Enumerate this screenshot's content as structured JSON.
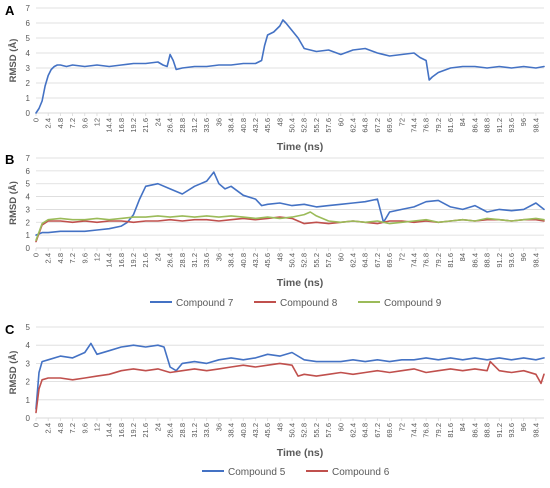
{
  "chart_data": [
    {
      "panel": "A",
      "type": "line",
      "ylabel": "RMSD (Å)",
      "xlabel": "Time (ns)",
      "ylim": [
        0,
        7
      ],
      "yticks": [
        0,
        1,
        2,
        3,
        4,
        5,
        6,
        7
      ],
      "xlim": [
        0,
        100
      ],
      "xticks": [
        "0",
        "2.4",
        "4.8",
        "7.2",
        "9.6",
        "12",
        "14.4",
        "16.8",
        "19.2",
        "21.6",
        "24",
        "26.4",
        "28.8",
        "31.2",
        "33.6",
        "36",
        "38.4",
        "40.8",
        "43.2",
        "45.6",
        "48",
        "50.4",
        "52.8",
        "55.2",
        "57.6",
        "60",
        "62.4",
        "64.8",
        "67.2",
        "69.6",
        "72",
        "74.4",
        "76.8",
        "79.2",
        "81.6",
        "84",
        "86.4",
        "88.8",
        "91.2",
        "93.6",
        "96",
        "98.4"
      ],
      "grid": true,
      "legend": "none",
      "colors": {
        "series": [
          "#4472c4"
        ]
      },
      "series": [
        {
          "name": "",
          "x": [
            0,
            0.6,
            1.2,
            1.8,
            2.4,
            3,
            3.6,
            4.2,
            4.8,
            6,
            7.2,
            9.6,
            12,
            14.4,
            16.8,
            19.2,
            21.6,
            24,
            25,
            25.8,
            26.4,
            27,
            27.6,
            28.8,
            31.2,
            33.6,
            36,
            38.4,
            40.8,
            43.2,
            44.4,
            45,
            45.6,
            46.8,
            48,
            48.6,
            49.2,
            50.4,
            51.6,
            52.8,
            55.2,
            57.6,
            60,
            62.4,
            64.8,
            67.2,
            69.6,
            72,
            74.4,
            75.6,
            76.8,
            77.4,
            78,
            79.2,
            81.6,
            84,
            86.4,
            88.8,
            91.2,
            93.6,
            96,
            98.4,
            100
          ],
          "y": [
            0,
            0.3,
            0.8,
            1.8,
            2.5,
            2.9,
            3.1,
            3.2,
            3.2,
            3.1,
            3.2,
            3.1,
            3.2,
            3.1,
            3.2,
            3.3,
            3.3,
            3.4,
            3.2,
            3.1,
            3.9,
            3.5,
            2.9,
            3.0,
            3.1,
            3.1,
            3.2,
            3.2,
            3.3,
            3.3,
            3.5,
            4.5,
            5.2,
            5.4,
            5.8,
            6.2,
            6.0,
            5.5,
            5.0,
            4.3,
            4.1,
            4.2,
            3.9,
            4.2,
            4.3,
            4.0,
            3.8,
            3.9,
            4.0,
            3.7,
            3.5,
            2.2,
            2.4,
            2.7,
            3.0,
            3.1,
            3.1,
            3.0,
            3.1,
            3.0,
            3.1,
            3.0,
            3.1
          ]
        }
      ]
    },
    {
      "panel": "B",
      "type": "line",
      "ylabel": "RMSD (Å)",
      "xlabel": "Time (ns)",
      "ylim": [
        0,
        7
      ],
      "yticks": [
        0,
        1,
        2,
        3,
        4,
        5,
        6,
        7
      ],
      "xlim": [
        0,
        100
      ],
      "xticks": [
        "0",
        "2.4",
        "4.8",
        "7.2",
        "9.6",
        "12",
        "14.4",
        "16.8",
        "19.2",
        "21.6",
        "24",
        "26.4",
        "28.8",
        "31.2",
        "33.6",
        "36",
        "38.4",
        "40.8",
        "43.2",
        "45.6",
        "48",
        "50.4",
        "52.8",
        "55.2",
        "57.6",
        "60",
        "62.4",
        "64.8",
        "67.2",
        "69.6",
        "72",
        "74.4",
        "76.8",
        "79.2",
        "81.6",
        "84",
        "86.4",
        "88.8",
        "91.2",
        "93.6",
        "96",
        "98.4"
      ],
      "grid": true,
      "legend": "bottom",
      "colors": {
        "series": [
          "#4472c4",
          "#c0504d",
          "#9bbb59"
        ]
      },
      "series": [
        {
          "name": "Compound 7",
          "x": [
            0,
            1.2,
            2.4,
            4.8,
            7.2,
            9.6,
            12,
            14.4,
            16.8,
            18,
            19.2,
            20.4,
            21.6,
            24,
            26.4,
            28.8,
            31.2,
            33.6,
            35,
            36,
            37.2,
            38.4,
            40.8,
            43.2,
            44.4,
            45.6,
            48,
            50.4,
            52.8,
            55.2,
            57.6,
            60,
            62.4,
            64.8,
            67.2,
            68.4,
            69.6,
            72,
            74.4,
            76.8,
            79.2,
            81.6,
            84,
            86.4,
            88.8,
            91.2,
            93.6,
            96,
            98.4,
            100
          ],
          "y": [
            1.0,
            1.2,
            1.2,
            1.3,
            1.3,
            1.3,
            1.4,
            1.5,
            1.7,
            2.0,
            2.6,
            3.8,
            4.8,
            5.0,
            4.6,
            4.2,
            4.8,
            5.2,
            5.9,
            5.0,
            4.6,
            4.8,
            4.1,
            3.8,
            3.3,
            3.4,
            3.5,
            3.3,
            3.4,
            3.2,
            3.3,
            3.4,
            3.5,
            3.6,
            3.8,
            2.0,
            2.8,
            3.0,
            3.2,
            3.6,
            3.7,
            3.2,
            3.0,
            3.3,
            2.8,
            3.0,
            2.9,
            3.0,
            3.5,
            3.0
          ]
        },
        {
          "name": "Compound 8",
          "x": [
            0,
            1.2,
            2.4,
            4.8,
            7.2,
            9.6,
            12,
            14.4,
            16.8,
            19.2,
            21.6,
            24,
            26.4,
            28.8,
            31.2,
            33.6,
            36,
            38.4,
            40.8,
            43.2,
            45.6,
            48,
            50.4,
            52.8,
            55.2,
            57.6,
            60,
            62.4,
            64.8,
            67.2,
            69.6,
            72,
            74.4,
            76.8,
            79.2,
            81.6,
            84,
            86.4,
            88.8,
            91.2,
            93.6,
            96,
            98.4,
            100
          ],
          "y": [
            0.5,
            1.8,
            2.1,
            2.1,
            2.0,
            2.1,
            2.0,
            2.1,
            2.1,
            2.0,
            2.1,
            2.1,
            2.2,
            2.1,
            2.2,
            2.2,
            2.1,
            2.2,
            2.3,
            2.2,
            2.3,
            2.4,
            2.3,
            1.9,
            2.0,
            1.9,
            2.0,
            2.1,
            2.0,
            1.9,
            2.1,
            2.1,
            2.0,
            2.1,
            2.0,
            2.1,
            2.2,
            2.1,
            2.2,
            2.2,
            2.1,
            2.2,
            2.2,
            2.1
          ]
        },
        {
          "name": "Compound 9",
          "x": [
            0,
            1.2,
            2.4,
            4.8,
            7.2,
            9.6,
            12,
            14.4,
            16.8,
            19.2,
            21.6,
            24,
            26.4,
            28.8,
            31.2,
            33.6,
            36,
            38.4,
            40.8,
            43.2,
            45.6,
            48,
            50.4,
            52.8,
            54,
            55.2,
            57.6,
            60,
            62.4,
            64.8,
            67.2,
            69.6,
            72,
            74.4,
            76.8,
            79.2,
            81.6,
            84,
            86.4,
            88.8,
            91.2,
            93.6,
            96,
            98.4,
            100
          ],
          "y": [
            0.6,
            1.9,
            2.2,
            2.3,
            2.2,
            2.2,
            2.3,
            2.2,
            2.3,
            2.4,
            2.4,
            2.5,
            2.4,
            2.5,
            2.4,
            2.5,
            2.4,
            2.5,
            2.4,
            2.3,
            2.4,
            2.3,
            2.4,
            2.6,
            2.8,
            2.5,
            2.1,
            2.0,
            2.1,
            2.0,
            2.1,
            1.9,
            2.0,
            2.1,
            2.2,
            2.0,
            2.1,
            2.2,
            2.1,
            2.3,
            2.2,
            2.1,
            2.2,
            2.3,
            2.2
          ]
        }
      ]
    },
    {
      "panel": "C",
      "type": "line",
      "ylabel": "RMSD (Å)",
      "xlabel": "Time (ns)",
      "ylim": [
        0,
        5
      ],
      "yticks": [
        0,
        1,
        2,
        3,
        4,
        5
      ],
      "xlim": [
        0,
        100
      ],
      "xticks": [
        "0",
        "2.4",
        "4.8",
        "7.2",
        "9.6",
        "12",
        "14.4",
        "16.8",
        "19.2",
        "21.6",
        "24",
        "26.4",
        "28.8",
        "31.2",
        "33.6",
        "36",
        "38.4",
        "40.8",
        "43.2",
        "45.6",
        "48",
        "50.4",
        "52.8",
        "55.2",
        "57.6",
        "60",
        "62.4",
        "64.8",
        "67.2",
        "69.6",
        "72",
        "74.4",
        "76.8",
        "79.2",
        "81.6",
        "84",
        "86.4",
        "88.8",
        "91.2",
        "93.6",
        "96",
        "98.4"
      ],
      "grid": true,
      "legend": "bottom",
      "colors": {
        "series": [
          "#4472c4",
          "#c0504d"
        ]
      },
      "series": [
        {
          "name": "Compound 5",
          "x": [
            0,
            0.6,
            1.2,
            2.4,
            4.8,
            7.2,
            9.6,
            10.8,
            12,
            14.4,
            16.8,
            19.2,
            21.6,
            24,
            25.2,
            26.4,
            27.6,
            28.8,
            31.2,
            33.6,
            36,
            38.4,
            40.8,
            43.2,
            45.6,
            48,
            50.4,
            52.8,
            55.2,
            57.6,
            60,
            62.4,
            64.8,
            67.2,
            69.6,
            72,
            74.4,
            76.8,
            79.2,
            81.6,
            84,
            86.4,
            88.8,
            91.2,
            93.6,
            96,
            98.4,
            100
          ],
          "y": [
            0.5,
            2.5,
            3.1,
            3.2,
            3.4,
            3.3,
            3.6,
            4.1,
            3.5,
            3.7,
            3.9,
            4.0,
            3.9,
            4.0,
            3.9,
            2.8,
            2.6,
            3.0,
            3.1,
            3.0,
            3.2,
            3.3,
            3.2,
            3.3,
            3.5,
            3.4,
            3.6,
            3.2,
            3.1,
            3.1,
            3.1,
            3.2,
            3.1,
            3.2,
            3.1,
            3.2,
            3.2,
            3.3,
            3.2,
            3.3,
            3.2,
            3.3,
            3.2,
            3.3,
            3.2,
            3.3,
            3.2,
            3.3
          ]
        },
        {
          "name": "Compound 6",
          "x": [
            0,
            0.6,
            1.2,
            2.4,
            4.8,
            7.2,
            9.6,
            12,
            14.4,
            16.8,
            19.2,
            21.6,
            24,
            26.4,
            28.8,
            31.2,
            33.6,
            36,
            38.4,
            40.8,
            43.2,
            45.6,
            48,
            50.4,
            51.6,
            52.8,
            55.2,
            57.6,
            60,
            62.4,
            64.8,
            67.2,
            69.6,
            72,
            74.4,
            76.8,
            79.2,
            81.6,
            84,
            86.4,
            88.8,
            89.4,
            91.2,
            93.6,
            96,
            98.4,
            99.4,
            100
          ],
          "y": [
            0.3,
            1.6,
            2.1,
            2.2,
            2.2,
            2.1,
            2.2,
            2.3,
            2.4,
            2.6,
            2.7,
            2.6,
            2.7,
            2.5,
            2.6,
            2.7,
            2.6,
            2.7,
            2.8,
            2.9,
            2.8,
            2.9,
            3.0,
            2.9,
            2.3,
            2.4,
            2.3,
            2.4,
            2.5,
            2.4,
            2.5,
            2.6,
            2.5,
            2.6,
            2.7,
            2.5,
            2.6,
            2.7,
            2.6,
            2.7,
            2.6,
            3.1,
            2.6,
            2.5,
            2.6,
            2.4,
            1.9,
            2.4
          ]
        }
      ]
    }
  ],
  "colors": {
    "axis": "#d9d9d9",
    "grid": "#d9d9d9",
    "text": "#595959"
  }
}
